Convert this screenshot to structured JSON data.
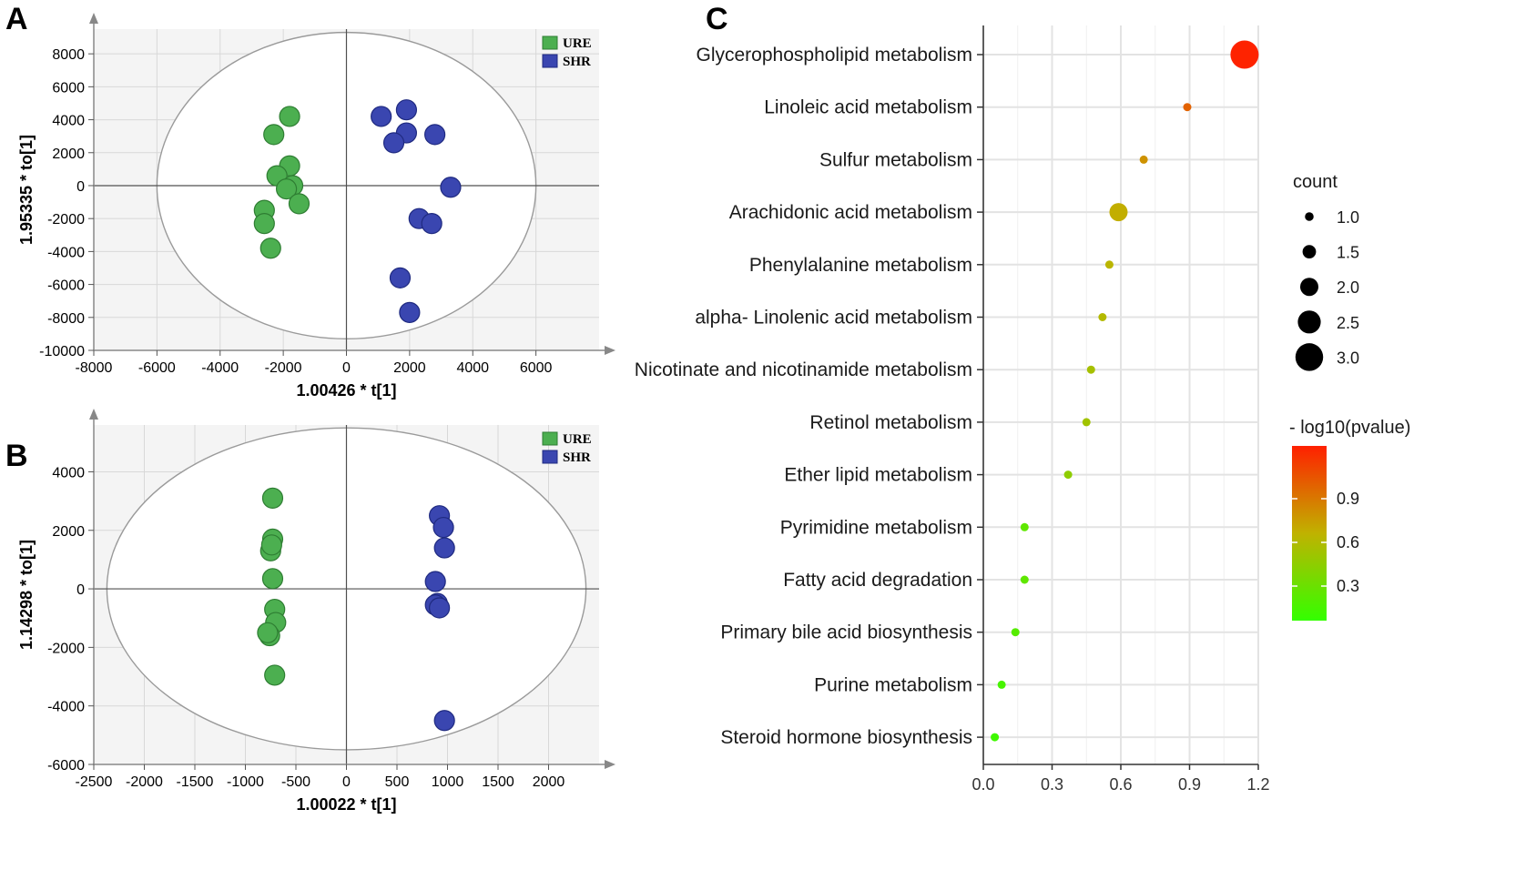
{
  "panels": {
    "a": "A",
    "b": "B",
    "c": "C"
  },
  "colors": {
    "ure": "#4caf50",
    "shr": "#3a46b0",
    "ure_edge": "#2e7d32",
    "shr_edge": "#1f2a80"
  },
  "chart_data": [
    {
      "type": "scatter",
      "panel": "A",
      "xlabel": "1.00426 * t[1]",
      "ylabel": "1.95335 * to[1]",
      "xlim": [
        -8000,
        8000
      ],
      "ylim": [
        -10000,
        9500
      ],
      "xticks": [
        -8000,
        -6000,
        -4000,
        -2000,
        0,
        2000,
        4000,
        6000
      ],
      "yticks": [
        -10000,
        -8000,
        -6000,
        -4000,
        -2000,
        0,
        2000,
        4000,
        6000,
        8000
      ],
      "ellipse": {
        "cx": 0,
        "cy": 0,
        "rx": 6000,
        "ry": 9300
      },
      "legend": [
        "URE",
        "SHR"
      ],
      "series": [
        {
          "name": "URE",
          "points": [
            [
              -1800,
              4200
            ],
            [
              -2300,
              3100
            ],
            [
              -1800,
              1200
            ],
            [
              -2200,
              600
            ],
            [
              -1700,
              0
            ],
            [
              -1900,
              -200
            ],
            [
              -1500,
              -1100
            ],
            [
              -2600,
              -1500
            ],
            [
              -2600,
              -2300
            ],
            [
              -2400,
              -3800
            ]
          ]
        },
        {
          "name": "SHR",
          "points": [
            [
              1900,
              4600
            ],
            [
              1100,
              4200
            ],
            [
              2800,
              3100
            ],
            [
              1900,
              3200
            ],
            [
              1500,
              2600
            ],
            [
              3300,
              -100
            ],
            [
              2300,
              -2000
            ],
            [
              2700,
              -2300
            ],
            [
              1700,
              -5600
            ],
            [
              2000,
              -7700
            ]
          ]
        }
      ]
    },
    {
      "type": "scatter",
      "panel": "B",
      "xlabel": "1.00022 * t[1]",
      "ylabel": "1.14298 * to[1]",
      "xlim": [
        -2500,
        2500
      ],
      "ylim": [
        -6000,
        5600
      ],
      "xticks": [
        -2500,
        -2000,
        -1500,
        -1000,
        -500,
        0,
        500,
        1000,
        1500,
        2000
      ],
      "yticks": [
        -6000,
        -4000,
        -2000,
        0,
        2000,
        4000
      ],
      "ellipse": {
        "cx": 0,
        "cy": 0,
        "rx": 2370,
        "ry": 5500
      },
      "legend": [
        "URE",
        "SHR"
      ],
      "series": [
        {
          "name": "URE",
          "points": [
            [
              -730,
              3100
            ],
            [
              -730,
              1700
            ],
            [
              -750,
              1300
            ],
            [
              -740,
              1500
            ],
            [
              -730,
              350
            ],
            [
              -710,
              -700
            ],
            [
              -700,
              -1150
            ],
            [
              -760,
              -1600
            ],
            [
              -780,
              -1500
            ],
            [
              -710,
              -2950
            ]
          ]
        },
        {
          "name": "SHR",
          "points": [
            [
              920,
              2500
            ],
            [
              960,
              2100
            ],
            [
              970,
              1400
            ],
            [
              880,
              250
            ],
            [
              900,
              -500
            ],
            [
              880,
              -550
            ],
            [
              920,
              -650
            ],
            [
              970,
              -4500
            ]
          ]
        }
      ]
    },
    {
      "type": "scatter",
      "panel": "C",
      "title": "",
      "xlim": [
        0,
        1.2
      ],
      "xticks": [
        "0.0",
        "0.3",
        "0.6",
        "0.9",
        "1.2"
      ],
      "categories": [
        "Glycerophospholipid metabolism",
        "Linoleic acid metabolism",
        "Sulfur metabolism",
        "Arachidonic acid metabolism",
        "Phenylalanine metabolism",
        "alpha- Linolenic acid metabolism",
        "Nicotinate and nicotinamide metabolism",
        "Retinol metabolism",
        "Ether lipid metabolism",
        "Pyrimidine metabolism",
        "Fatty acid degradation",
        "Primary bile acid biosynthesis",
        "Purine metabolism",
        "Steroid hormone biosynthesis"
      ],
      "values": [
        1.14,
        0.89,
        0.7,
        0.59,
        0.55,
        0.52,
        0.47,
        0.45,
        0.37,
        0.18,
        0.18,
        0.14,
        0.08,
        0.05
      ],
      "count": [
        3,
        1,
        1,
        2,
        1,
        1,
        1,
        1,
        1,
        1,
        1,
        1,
        1,
        1
      ],
      "pvalue_log": [
        1.14,
        0.89,
        0.7,
        0.59,
        0.55,
        0.52,
        0.47,
        0.45,
        0.37,
        0.18,
        0.18,
        0.14,
        0.08,
        0.05
      ],
      "legend_count": {
        "title": "count",
        "levels": [
          "1.0",
          "1.5",
          "2.0",
          "2.5",
          "3.0"
        ]
      },
      "legend_color": {
        "title": "- log10(pvalue)",
        "ticks": [
          "0.9",
          "0.6",
          "0.3"
        ]
      }
    }
  ]
}
